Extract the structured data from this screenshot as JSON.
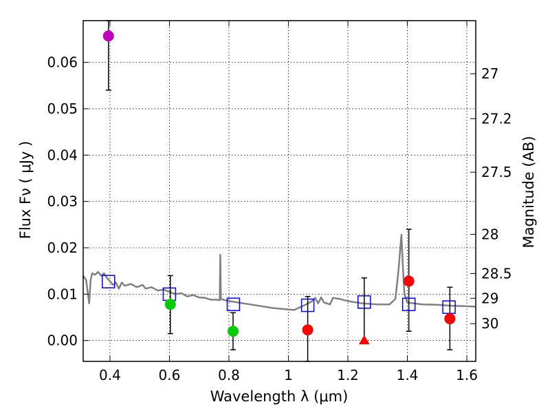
{
  "chart_data": {
    "type": "scatter",
    "xlabel": "Wavelength  λ (μm)",
    "ylabel": "Flux  Fν  ( μJy )",
    "y2label": "Magnitude (AB)",
    "xlim": [
      0.31,
      1.63
    ],
    "ylim": [
      -0.0045,
      0.069
    ],
    "grid": true,
    "x_ticks": [
      {
        "value": 0.4,
        "label": "0.4"
      },
      {
        "value": 0.6,
        "label": "0.6"
      },
      {
        "value": 0.8,
        "label": "0.8"
      },
      {
        "value": 1.0,
        "label": "1"
      },
      {
        "value": 1.2,
        "label": "1.2"
      },
      {
        "value": 1.4,
        "label": "1.4"
      },
      {
        "value": 1.6,
        "label": "1.6"
      }
    ],
    "y_ticks": [
      {
        "value": 0.0,
        "label": "0.00"
      },
      {
        "value": 0.01,
        "label": "0.01"
      },
      {
        "value": 0.02,
        "label": "0.02"
      },
      {
        "value": 0.03,
        "label": "0.03"
      },
      {
        "value": 0.04,
        "label": "0.04"
      },
      {
        "value": 0.05,
        "label": "0.05"
      },
      {
        "value": 0.06,
        "label": "0.06"
      }
    ],
    "y2_ticks": [
      {
        "mag": 27.0,
        "label": "27"
      },
      {
        "mag": 27.2,
        "label": "27.2"
      },
      {
        "mag": 27.5,
        "label": "27.5"
      },
      {
        "mag": 28.0,
        "label": "28"
      },
      {
        "mag": 28.5,
        "label": "28.5"
      },
      {
        "mag": 29.0,
        "label": "29"
      },
      {
        "mag": 30.0,
        "label": "30"
      }
    ],
    "model_spectrum": {
      "color": "#808080",
      "points": [
        [
          0.31,
          0.014
        ],
        [
          0.32,
          0.013
        ],
        [
          0.325,
          0.0105
        ],
        [
          0.33,
          0.008
        ],
        [
          0.335,
          0.013
        ],
        [
          0.34,
          0.0145
        ],
        [
          0.35,
          0.0142
        ],
        [
          0.36,
          0.0148
        ],
        [
          0.37,
          0.014
        ],
        [
          0.38,
          0.0145
        ],
        [
          0.39,
          0.0135
        ],
        [
          0.4,
          0.0128
        ],
        [
          0.41,
          0.012
        ],
        [
          0.42,
          0.0125
        ],
        [
          0.43,
          0.0112
        ],
        [
          0.44,
          0.0125
        ],
        [
          0.45,
          0.0118
        ],
        [
          0.47,
          0.0122
        ],
        [
          0.49,
          0.0115
        ],
        [
          0.51,
          0.012
        ],
        [
          0.52,
          0.0112
        ],
        [
          0.54,
          0.0115
        ],
        [
          0.56,
          0.0108
        ],
        [
          0.58,
          0.011
        ],
        [
          0.6,
          0.0105
        ],
        [
          0.62,
          0.01
        ],
        [
          0.64,
          0.0102
        ],
        [
          0.66,
          0.0095
        ],
        [
          0.68,
          0.0098
        ],
        [
          0.7,
          0.0093
        ],
        [
          0.72,
          0.0092
        ],
        [
          0.74,
          0.0088
        ],
        [
          0.76,
          0.0088
        ],
        [
          0.769,
          0.0087
        ],
        [
          0.771,
          0.0185
        ],
        [
          0.773,
          0.009
        ],
        [
          0.78,
          0.0088
        ],
        [
          0.8,
          0.0085
        ],
        [
          0.85,
          0.008
        ],
        [
          0.9,
          0.0075
        ],
        [
          0.95,
          0.007
        ],
        [
          1.0,
          0.0067
        ],
        [
          1.02,
          0.0066
        ],
        [
          1.04,
          0.0072
        ],
        [
          1.06,
          0.0078
        ],
        [
          1.08,
          0.0085
        ],
        [
          1.09,
          0.0092
        ],
        [
          1.1,
          0.008
        ],
        [
          1.11,
          0.0093
        ],
        [
          1.12,
          0.0082
        ],
        [
          1.14,
          0.0078
        ],
        [
          1.15,
          0.0092
        ],
        [
          1.17,
          0.009
        ],
        [
          1.2,
          0.0085
        ],
        [
          1.25,
          0.008
        ],
        [
          1.3,
          0.0078
        ],
        [
          1.34,
          0.0078
        ],
        [
          1.36,
          0.009
        ],
        [
          1.37,
          0.015
        ],
        [
          1.38,
          0.0228
        ],
        [
          1.385,
          0.016
        ],
        [
          1.39,
          0.01
        ],
        [
          1.4,
          0.0082
        ],
        [
          1.45,
          0.0078
        ],
        [
          1.5,
          0.0077
        ],
        [
          1.55,
          0.0075
        ],
        [
          1.6,
          0.0074
        ],
        [
          1.63,
          0.0073
        ]
      ]
    },
    "model_photometry": {
      "color": "#0000ff",
      "marker": "square",
      "x": [
        0.395,
        0.6,
        0.815,
        1.065,
        1.255,
        1.405,
        1.54
      ],
      "y": [
        0.0127,
        0.01,
        0.0078,
        0.0076,
        0.0083,
        0.0078,
        0.0072
      ]
    },
    "observations": [
      {
        "x": 0.395,
        "y": 0.0657,
        "yerr_low": 0.054,
        "yerr_high": 0.069,
        "color": "#bf00bf",
        "marker": "circle"
      },
      {
        "x": 0.603,
        "y": 0.0078,
        "yerr_low": 0.0015,
        "yerr_high": 0.014,
        "color": "#00cc00",
        "marker": "circle"
      },
      {
        "x": 0.814,
        "y": 0.002,
        "yerr_low": -0.002,
        "yerr_high": 0.006,
        "color": "#00cc00",
        "marker": "circle"
      },
      {
        "x": 1.065,
        "y": 0.0023,
        "yerr_low": -0.0045,
        "yerr_high": 0.0095,
        "color": "#ff0000",
        "marker": "circle"
      },
      {
        "x": 1.255,
        "y": 0.0,
        "yerr_low": 0.0,
        "yerr_high": 0.0135,
        "color": "#ff0000",
        "marker": "triangle"
      },
      {
        "x": 1.405,
        "y": 0.0128,
        "yerr_low": 0.002,
        "yerr_high": 0.024,
        "color": "#ff0000",
        "marker": "circle"
      },
      {
        "x": 1.543,
        "y": 0.0047,
        "yerr_low": -0.002,
        "yerr_high": 0.0115,
        "color": "#ff0000",
        "marker": "circle"
      }
    ]
  }
}
